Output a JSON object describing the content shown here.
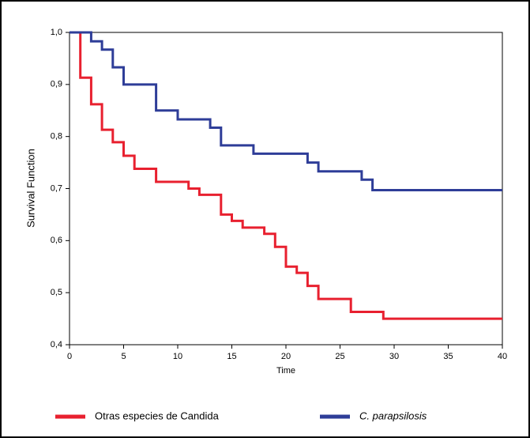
{
  "chart_data": {
    "type": "step",
    "ylabel": "Survival Function",
    "xlabel": "Time",
    "xlim": [
      0,
      40
    ],
    "xticks": [
      0,
      5,
      10,
      15,
      20,
      25,
      30,
      35,
      40
    ],
    "ylim": [
      0.4,
      1.0
    ],
    "yticks": [
      {
        "value": 0.4,
        "label": "0,4"
      },
      {
        "value": 0.5,
        "label": "0,5"
      },
      {
        "value": 0.6,
        "label": "0,6"
      },
      {
        "value": 0.7,
        "label": "0,7"
      },
      {
        "value": 0.8,
        "label": "0,8"
      },
      {
        "value": 0.9,
        "label": "0,9"
      },
      {
        "value": 1.0,
        "label": "1,0"
      }
    ],
    "legend": "bottom",
    "series": [
      {
        "name": "Otras especies de Candida",
        "color": "#e8202f",
        "x": [
          0,
          1,
          2,
          3,
          4,
          5,
          6,
          8,
          11,
          12,
          14,
          15,
          16,
          18,
          19,
          20,
          21,
          22,
          23,
          26,
          29,
          40
        ],
        "values": [
          1.0,
          0.913,
          0.862,
          0.813,
          0.789,
          0.763,
          0.738,
          0.713,
          0.7,
          0.688,
          0.65,
          0.638,
          0.625,
          0.613,
          0.588,
          0.55,
          0.538,
          0.513,
          0.488,
          0.463,
          0.45,
          0.45
        ]
      },
      {
        "name": "C. parapsilosis",
        "color": "#2e3d98",
        "x": [
          0,
          2,
          3,
          4,
          5,
          8,
          10,
          13,
          14,
          17,
          22,
          23,
          27,
          28,
          40
        ],
        "values": [
          1.0,
          0.983,
          0.967,
          0.933,
          0.9,
          0.85,
          0.833,
          0.817,
          0.783,
          0.767,
          0.75,
          0.733,
          0.717,
          0.697,
          0.697
        ]
      }
    ]
  }
}
